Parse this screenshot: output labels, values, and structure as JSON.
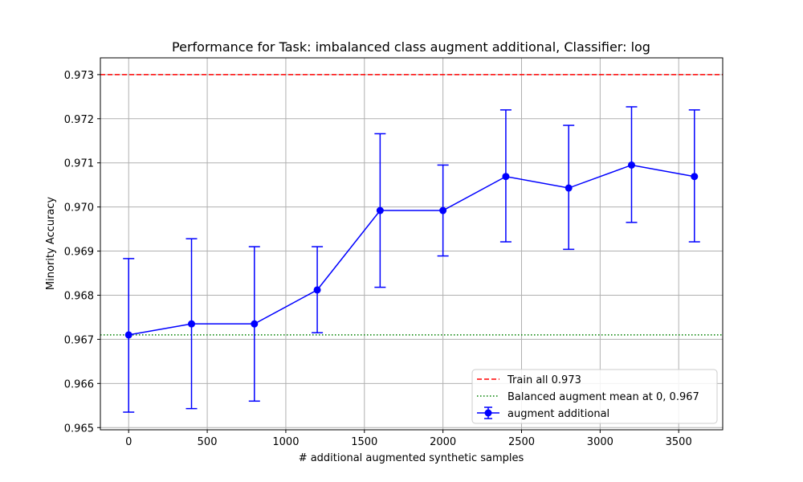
{
  "chart_data": {
    "type": "line",
    "title": "Performance for Task: imbalanced class augment additional, Classifier: log",
    "xlabel": "# additional augmented synthetic samples",
    "ylabel": "Minority Accuracy",
    "xlim": [
      -180,
      3780
    ],
    "ylim": [
      0.96495,
      0.97338
    ],
    "xticks": [
      0,
      500,
      1000,
      1500,
      2000,
      2500,
      3000,
      3500
    ],
    "yticks": [
      0.965,
      0.966,
      0.967,
      0.968,
      0.969,
      0.97,
      0.971,
      0.972,
      0.973
    ],
    "grid": true,
    "legend_position": "lower-right",
    "series": [
      {
        "name": "augment additional",
        "color": "#0000ff",
        "x": [
          0,
          400,
          800,
          1200,
          1600,
          2000,
          2400,
          2800,
          3200,
          3600
        ],
        "y": [
          0.9671,
          0.96735,
          0.96735,
          0.96812,
          0.96992,
          0.96992,
          0.97069,
          0.97043,
          0.97095,
          0.97069
        ],
        "err_low": [
          0.96535,
          0.96543,
          0.9656,
          0.96715,
          0.96818,
          0.96889,
          0.96921,
          0.96904,
          0.96965,
          0.96921
        ],
        "err_high": [
          0.96883,
          0.96928,
          0.9691,
          0.9691,
          0.97166,
          0.97095,
          0.9722,
          0.97185,
          0.97227,
          0.9722
        ]
      }
    ],
    "reference_lines": [
      {
        "name": "Train all  0.973",
        "y": 0.973,
        "color": "#ff0000",
        "style": "dashed"
      },
      {
        "name": "Balanced augment mean at 0, 0.967",
        "y": 0.9671,
        "color": "#008000",
        "style": "dotted"
      }
    ]
  }
}
